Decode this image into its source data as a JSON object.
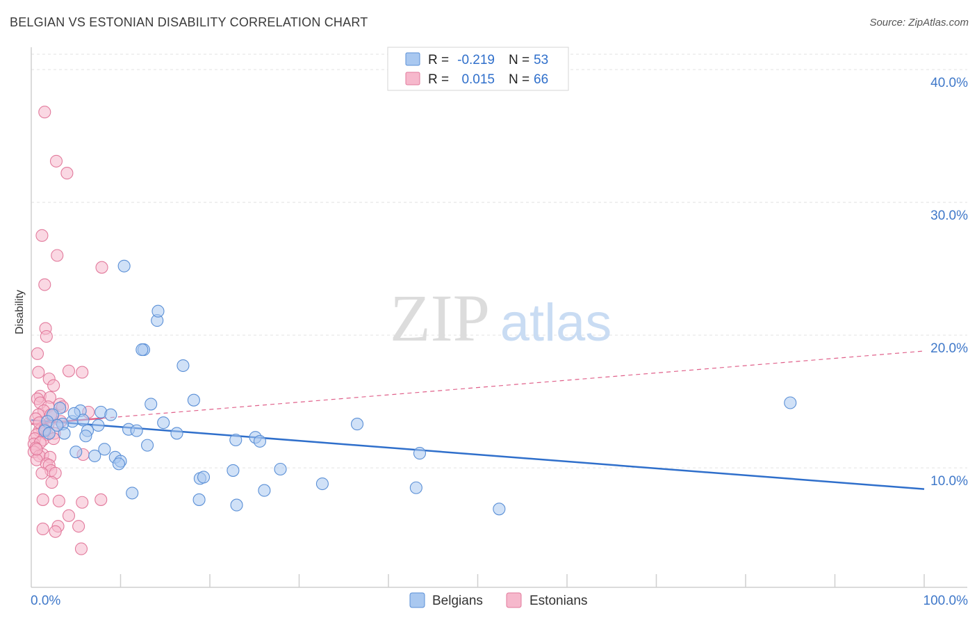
{
  "header": {
    "title": "BELGIAN VS ESTONIAN DISABILITY CORRELATION CHART",
    "source": "Source: ZipAtlas.com"
  },
  "watermark": {
    "zip": "ZIP",
    "atlas": "atlas"
  },
  "legend_stats": [
    {
      "r_label": "R =",
      "r_value": "-0.219",
      "n_label": "N =",
      "n_value": "53",
      "series": "Belgians"
    },
    {
      "r_label": "R =",
      "r_value": "0.015",
      "n_label": "N =",
      "n_value": "66",
      "series": "Estonians"
    }
  ],
  "colors": {
    "belgians_fill": "#a9c8f0",
    "belgians_stroke": "#5a8fd6",
    "belgians_line": "#2f6fcb",
    "estonians_fill": "#f6b8cc",
    "estonians_stroke": "#e27a9c",
    "estonians_line": "#e0608a",
    "tick_text": "#3f78c9",
    "value_text": "#2f6fcb"
  },
  "chart_data": {
    "type": "scatter",
    "title": "BELGIAN VS ESTONIAN DISABILITY CORRELATION CHART",
    "xlabel": "",
    "ylabel": "Disability",
    "xlim": [
      0,
      100
    ],
    "ylim": [
      1,
      41
    ],
    "x_tick_labels": [
      "0.0%",
      "100.0%"
    ],
    "y_ticks": [
      10,
      20,
      30,
      40
    ],
    "y_tick_labels": [
      "10.0%",
      "20.0%",
      "30.0%",
      "40.0%"
    ],
    "grid": true,
    "legend": [
      "Belgians",
      "Estonians"
    ],
    "series": [
      {
        "name": "Belgians",
        "trend": {
          "x": [
            0,
            100
          ],
          "y": [
            13.6,
            8.4
          ],
          "style": "solid"
        },
        "points": [
          [
            3.2,
            14.5
          ],
          [
            2.4,
            14.0
          ],
          [
            5.5,
            14.3
          ],
          [
            7.8,
            14.2
          ],
          [
            8.9,
            14.0
          ],
          [
            1.8,
            13.5
          ],
          [
            4.6,
            13.5
          ],
          [
            5.8,
            13.6
          ],
          [
            7.5,
            13.2
          ],
          [
            3.5,
            13.3
          ],
          [
            1.5,
            12.8
          ],
          [
            2.0,
            12.6
          ],
          [
            3.7,
            12.6
          ],
          [
            6.3,
            12.8
          ],
          [
            6.1,
            12.4
          ],
          [
            10.9,
            12.9
          ],
          [
            11.8,
            12.8
          ],
          [
            14.8,
            13.4
          ],
          [
            16.3,
            12.6
          ],
          [
            13.0,
            11.7
          ],
          [
            8.2,
            11.4
          ],
          [
            5.0,
            11.2
          ],
          [
            7.1,
            10.9
          ],
          [
            9.4,
            10.8
          ],
          [
            10.0,
            10.5
          ],
          [
            9.8,
            10.3
          ],
          [
            13.4,
            14.8
          ],
          [
            18.2,
            15.1
          ],
          [
            17.0,
            17.7
          ],
          [
            12.6,
            18.9
          ],
          [
            12.4,
            18.9
          ],
          [
            14.1,
            21.1
          ],
          [
            14.2,
            21.8
          ],
          [
            10.4,
            25.2
          ],
          [
            22.9,
            12.1
          ],
          [
            25.1,
            12.3
          ],
          [
            25.6,
            12.0
          ],
          [
            36.5,
            13.3
          ],
          [
            43.5,
            11.1
          ],
          [
            27.9,
            9.9
          ],
          [
            22.6,
            9.8
          ],
          [
            18.9,
            9.2
          ],
          [
            19.3,
            9.3
          ],
          [
            32.6,
            8.8
          ],
          [
            26.1,
            8.3
          ],
          [
            43.1,
            8.5
          ],
          [
            11.3,
            8.1
          ],
          [
            18.8,
            7.6
          ],
          [
            23.0,
            7.2
          ],
          [
            52.4,
            6.9
          ],
          [
            85.0,
            14.9
          ],
          [
            2.9,
            13.2
          ],
          [
            4.8,
            14.1
          ]
        ]
      },
      {
        "name": "Estonians",
        "trend": {
          "x": [
            0,
            100
          ],
          "y": [
            13.3,
            18.8
          ],
          "style": "dashed",
          "solid_until": 8
        },
        "points": [
          [
            1.5,
            36.8
          ],
          [
            2.8,
            33.1
          ],
          [
            4.0,
            32.2
          ],
          [
            1.2,
            27.5
          ],
          [
            2.9,
            26.0
          ],
          [
            7.9,
            25.1
          ],
          [
            1.5,
            23.8
          ],
          [
            1.6,
            20.5
          ],
          [
            1.7,
            19.9
          ],
          [
            0.7,
            18.6
          ],
          [
            0.8,
            17.2
          ],
          [
            4.2,
            17.3
          ],
          [
            5.7,
            17.2
          ],
          [
            2.0,
            16.7
          ],
          [
            2.5,
            16.2
          ],
          [
            1.0,
            15.4
          ],
          [
            0.7,
            15.2
          ],
          [
            2.1,
            15.3
          ],
          [
            1.0,
            14.9
          ],
          [
            1.9,
            14.6
          ],
          [
            3.2,
            14.8
          ],
          [
            1.4,
            14.3
          ],
          [
            3.5,
            14.6
          ],
          [
            0.8,
            14.0
          ],
          [
            2.4,
            13.9
          ],
          [
            6.4,
            14.2
          ],
          [
            0.5,
            13.7
          ],
          [
            1.9,
            13.3
          ],
          [
            1.2,
            13.0
          ],
          [
            0.9,
            12.8
          ],
          [
            0.6,
            12.5
          ],
          [
            1.8,
            12.5
          ],
          [
            2.6,
            12.6
          ],
          [
            0.4,
            12.2
          ],
          [
            1.3,
            12.1
          ],
          [
            2.5,
            12.2
          ],
          [
            0.3,
            11.8
          ],
          [
            1.0,
            11.9
          ],
          [
            0.5,
            11.5
          ],
          [
            0.3,
            11.2
          ],
          [
            1.3,
            11.0
          ],
          [
            0.9,
            10.9
          ],
          [
            2.1,
            10.8
          ],
          [
            0.6,
            10.6
          ],
          [
            1.7,
            10.3
          ],
          [
            2.0,
            10.2
          ],
          [
            2.2,
            9.8
          ],
          [
            1.2,
            9.6
          ],
          [
            2.7,
            9.6
          ],
          [
            2.3,
            8.9
          ],
          [
            5.8,
            11.0
          ],
          [
            1.3,
            7.6
          ],
          [
            3.1,
            7.5
          ],
          [
            5.7,
            7.4
          ],
          [
            7.8,
            7.6
          ],
          [
            4.2,
            6.4
          ],
          [
            3.0,
            5.6
          ],
          [
            5.3,
            5.6
          ],
          [
            1.3,
            5.4
          ],
          [
            2.7,
            5.2
          ],
          [
            5.6,
            3.9
          ],
          [
            0.9,
            13.4
          ],
          [
            2.2,
            14.0
          ],
          [
            1.5,
            12.9
          ],
          [
            0.6,
            11.4
          ],
          [
            3.3,
            13.5
          ]
        ]
      }
    ]
  }
}
